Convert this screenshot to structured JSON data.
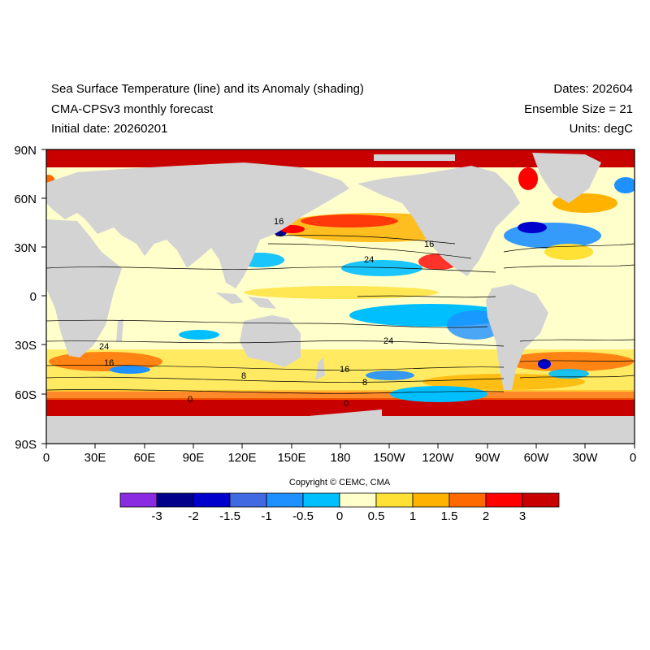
{
  "header": {
    "title": "Sea Surface Temperature (line) and its Anomaly (shading)",
    "model": "CMA-CPSv3 monthly forecast",
    "initial": "Initial date: 20260201",
    "dates": "Dates: 202604",
    "ensemble": "Ensemble Size = 21",
    "units": "Units: degC"
  },
  "axes": {
    "lat_labels": [
      "90N",
      "60N",
      "30N",
      "0",
      "30S",
      "60S",
      "90S"
    ],
    "lon_labels": [
      "0",
      "30E",
      "60E",
      "90E",
      "120E",
      "150E",
      "180",
      "150W",
      "120W",
      "90W",
      "60W",
      "30W",
      "0"
    ]
  },
  "contour_labels": [
    "24",
    "16",
    "24",
    "16",
    "8",
    "24",
    "16",
    "8",
    "0",
    "0",
    "16"
  ],
  "colorbar": {
    "copyright": "Copyright © CEMC, CMA",
    "labels": [
      "-3",
      "-2",
      "-1.5",
      "-1",
      "-0.5",
      "0",
      "0.5",
      "1",
      "1.5",
      "2",
      "3"
    ],
    "colors": [
      "#8a2be2",
      "#00008b",
      "#0000cd",
      "#4169e1",
      "#1e90ff",
      "#00bfff",
      "#ffffcc",
      "#ffe135",
      "#ffb300",
      "#ff6a00",
      "#ff0000",
      "#c80000"
    ]
  },
  "land_color": "#d3d3d3"
}
